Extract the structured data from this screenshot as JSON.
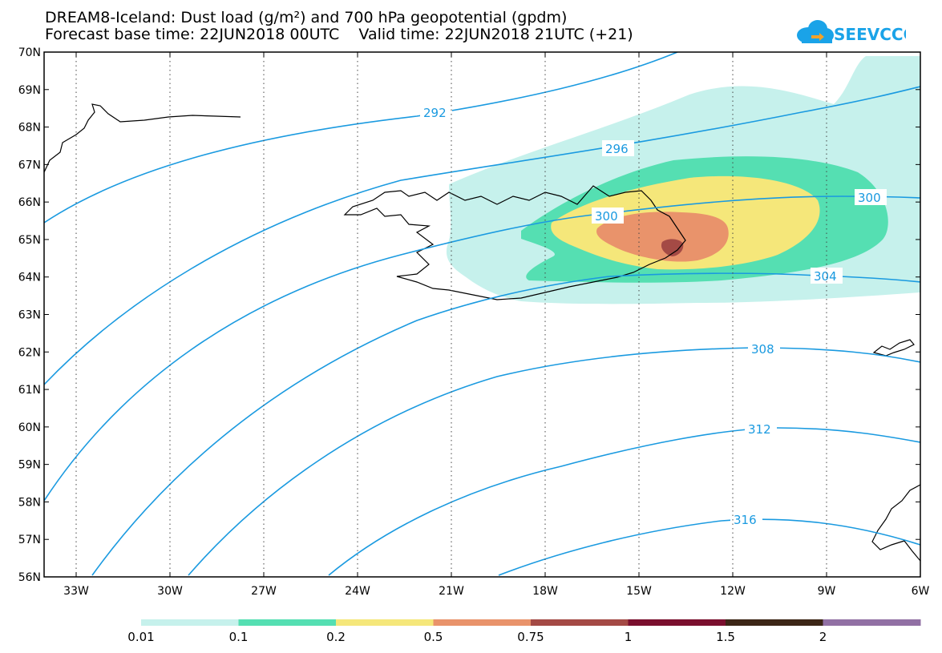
{
  "header": {
    "title_line1": "DREAM8-Iceland: Dust load (g/m²) and 700 hPa geopotential (gpdm)",
    "title_line2": "Forecast base time: 22JUN2018 00UTC    Valid time: 22JUN2018 21UTC (+21)",
    "logo_text": "SEEVCCC"
  },
  "axes": {
    "lat_labels": [
      "70N",
      "69N",
      "68N",
      "67N",
      "66N",
      "65N",
      "64N",
      "63N",
      "62N",
      "61N",
      "60N",
      "59N",
      "58N",
      "57N",
      "56N"
    ],
    "lon_labels": [
      "33W",
      "30W",
      "27W",
      "24W",
      "21W",
      "18W",
      "15W",
      "12W",
      "9W",
      "6W"
    ]
  },
  "contours": {
    "labels": [
      "292",
      "296",
      "300",
      "300",
      "304",
      "308",
      "312",
      "316"
    ]
  },
  "legend": {
    "labels": [
      "0.01",
      "0.1",
      "0.2",
      "0.5",
      "0.75",
      "1",
      "1.5",
      "2"
    ],
    "colors": [
      "#c6f1ec",
      "#55dfb2",
      "#f5e77a",
      "#e9936b",
      "#a44a45",
      "#7a0f2e",
      "#3c2616",
      "#9170a4"
    ]
  },
  "colors": {
    "contour_line": "#1a9ae0",
    "coast": "#000000"
  }
}
